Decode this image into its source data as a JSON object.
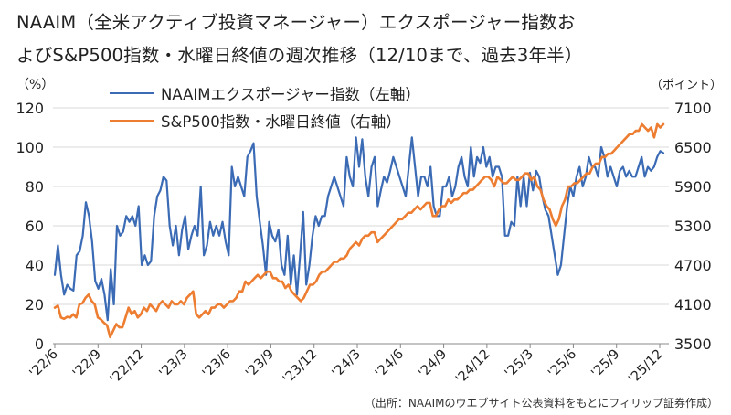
{
  "title_line1": "NAAIM（全米アクティブ投資マネージャー）エクスポージャー指数お",
  "title_line2": "よびS&P500指数・水曜日終値の週次推移（12/10まで、過去3年半）",
  "left_unit": "（%）",
  "right_unit": "（ポイント）",
  "source": "（出所：NAAIMのウエブサイト公表資料をもとにフィリップ証券作成）",
  "chart_data": {
    "type": "line",
    "x_tick_labels": [
      "'22/6",
      "'22/9",
      "'22/12",
      "'23/3",
      "'23/6",
      "'23/9",
      "'23/12",
      "'24/3",
      "'24/6",
      "'24/9",
      "'24/12",
      "'25/3",
      "'25/6",
      "'25/9",
      "'25/12"
    ],
    "left_axis": {
      "label": "（%）",
      "ylim": [
        0,
        120
      ],
      "ticks": [
        0,
        20,
        40,
        60,
        80,
        100,
        120
      ]
    },
    "right_axis": {
      "label": "（ポイント）",
      "ylim": [
        3500,
        7100
      ],
      "ticks": [
        3500,
        4100,
        4700,
        5300,
        5900,
        6500,
        7100
      ]
    },
    "grid": "horizontal",
    "series": [
      {
        "name": "NAAIMエクスポージャー指数（左軸）",
        "axis": "left",
        "color": "#3B6BB5",
        "values": [
          35,
          50,
          35,
          25,
          30,
          28,
          27,
          45,
          47,
          55,
          72,
          65,
          52,
          32,
          28,
          33,
          25,
          12,
          38,
          20,
          60,
          55,
          57,
          65,
          62,
          65,
          60,
          70,
          40,
          45,
          40,
          42,
          65,
          75,
          78,
          85,
          83,
          60,
          50,
          60,
          45,
          58,
          65,
          48,
          55,
          60,
          55,
          80,
          45,
          50,
          62,
          55,
          60,
          55,
          62,
          52,
          45,
          90,
          80,
          85,
          80,
          75,
          95,
          98,
          102,
          75,
          62,
          50,
          35,
          62,
          55,
          52,
          58,
          40,
          35,
          55,
          30,
          45,
          25,
          45,
          67,
          30,
          40,
          55,
          65,
          60,
          65,
          65,
          75,
          80,
          85,
          80,
          75,
          70,
          95,
          85,
          80,
          105,
          90,
          104,
          85,
          75,
          90,
          95,
          70,
          78,
          85,
          82,
          88,
          95,
          90,
          85,
          80,
          75,
          90,
          105,
          90,
          75,
          85,
          85,
          80,
          90,
          70,
          65,
          65,
          80,
          80,
          85,
          75,
          80,
          90,
          95,
          85,
          80,
          100,
          85,
          95,
          92,
          100,
          90,
          95,
          85,
          90,
          90,
          85,
          55,
          55,
          62,
          60,
          85,
          70,
          85,
          70,
          87,
          78,
          88,
          85,
          75,
          68,
          65,
          55,
          45,
          35,
          40,
          55,
          70,
          80,
          75,
          85,
          90,
          80,
          85,
          95,
          90,
          90,
          85,
          100,
          95,
          85,
          90,
          85,
          80,
          88,
          90,
          85,
          88,
          85,
          85,
          90,
          95,
          85,
          90,
          88,
          90,
          95,
          98,
          97
        ]
      },
      {
        "name": "S&P500指数・水曜日終値（右軸）",
        "axis": "right",
        "color": "#ED7D31",
        "values": [
          4050,
          4080,
          3900,
          3880,
          3910,
          3900,
          3950,
          3900,
          4100,
          4120,
          4200,
          4250,
          4150,
          4100,
          3900,
          3870,
          3820,
          3780,
          3600,
          3700,
          3800,
          3750,
          3750,
          3900,
          4050,
          3950,
          4000,
          3900,
          3950,
          4050,
          4000,
          4100,
          4050,
          4000,
          4100,
          4150,
          4100,
          4050,
          4150,
          4100,
          4100,
          4150,
          4100,
          4200,
          4250,
          4300,
          3950,
          3900,
          3950,
          4000,
          3950,
          4050,
          4050,
          4100,
          4100,
          4050,
          4100,
          4150,
          4150,
          4200,
          4300,
          4300,
          4450,
          4400,
          4450,
          4500,
          4550,
          4500,
          4550,
          4600,
          4600,
          4500,
          4500,
          4450,
          4450,
          4350,
          4400,
          4300,
          4250,
          4200,
          4150,
          4200,
          4300,
          4400,
          4400,
          4450,
          4550,
          4600,
          4600,
          4650,
          4700,
          4750,
          4750,
          4800,
          4800,
          4850,
          4950,
          5000,
          5050,
          5000,
          5100,
          5150,
          5150,
          5200,
          5200,
          5050,
          5100,
          5150,
          5200,
          5250,
          5300,
          5350,
          5400,
          5400,
          5450,
          5500,
          5500,
          5550,
          5600,
          5550,
          5600,
          5650,
          5650,
          5450,
          5450,
          5550,
          5600,
          5600,
          5700,
          5650,
          5700,
          5700,
          5750,
          5800,
          5800,
          5850,
          5850,
          5900,
          5950,
          6000,
          6050,
          6050,
          6000,
          5900,
          6050,
          6000,
          5950,
          5950,
          6000,
          6050,
          6000,
          6000,
          6050,
          6100,
          6100,
          6000,
          6050,
          5900,
          5850,
          5700,
          5600,
          5550,
          5400,
          5300,
          5400,
          5600,
          5700,
          5900,
          5900,
          5950,
          5950,
          6000,
          6050,
          6100,
          6100,
          6200,
          6250,
          6250,
          6350,
          6350,
          6400,
          6400,
          6450,
          6500,
          6550,
          6600,
          6650,
          6700,
          6700,
          6750,
          6750,
          6850,
          6800,
          6750,
          6800,
          6650,
          6850,
          6800,
          6850
        ]
      }
    ]
  }
}
